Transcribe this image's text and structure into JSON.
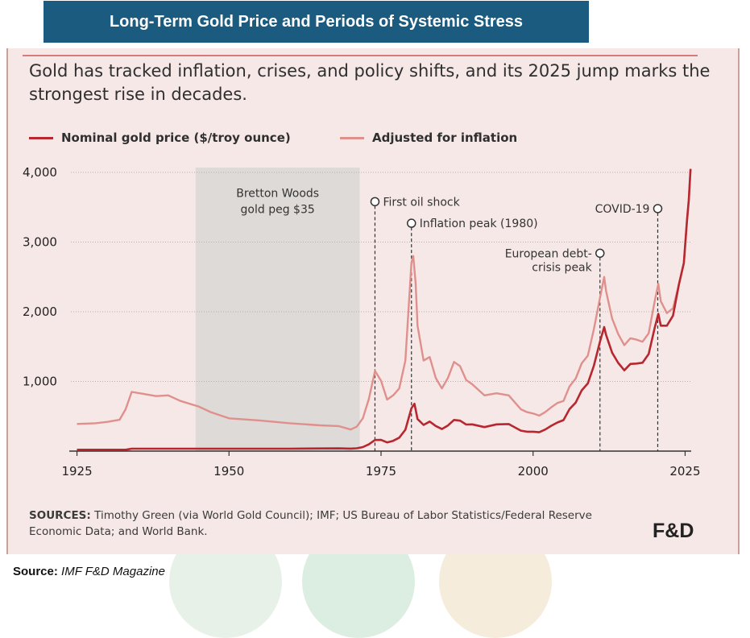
{
  "banner_title": "Long-Term Gold Price and Periods of Systemic Stress",
  "subtitle": "Gold has tracked inflation, crises, and policy shifts, and its 2025 jump marks the strongest rise in decades.",
  "sources": {
    "label": "SOURCES:",
    "text": "Timothy Green (via World Gold Council); IMF; US Bureau of Labor Statistics/Federal Reserve Economic Data; and World Bank."
  },
  "logo": "F&D",
  "footer": {
    "label": "Source:",
    "value": "IMF F&D Magazine"
  },
  "colors": {
    "nominal": "#b8272f",
    "inflation_adjusted": "#e0908c",
    "banner": "#1b5b80",
    "shade": "#dedad8"
  },
  "chart_data": {
    "type": "line",
    "title": "",
    "xlabel": "",
    "ylabel": "",
    "xlim": [
      1924,
      2026
    ],
    "ylim": [
      0,
      4000
    ],
    "x_ticks": [
      "1925",
      "1950",
      "1975",
      "2000",
      "2025"
    ],
    "y_ticks": [
      "1,000",
      "2,000",
      "3,000",
      "4,000"
    ],
    "grid": "horizontal",
    "legend": "top-left",
    "series": [
      {
        "name": "Nominal gold price ($/troy ounce)",
        "color": "#b8272f",
        "points": [
          [
            1925,
            20
          ],
          [
            1933,
            20
          ],
          [
            1934,
            35
          ],
          [
            1945,
            35
          ],
          [
            1960,
            35
          ],
          [
            1968,
            39
          ],
          [
            1970,
            36
          ],
          [
            1971,
            41
          ],
          [
            1972,
            58
          ],
          [
            1973,
            97
          ],
          [
            1974,
            159
          ],
          [
            1975,
            161
          ],
          [
            1976,
            125
          ],
          [
            1977,
            148
          ],
          [
            1978,
            193
          ],
          [
            1979,
            306
          ],
          [
            1980,
            615
          ],
          [
            1980.5,
            680
          ],
          [
            1981,
            460
          ],
          [
            1982,
            376
          ],
          [
            1983,
            424
          ],
          [
            1984,
            361
          ],
          [
            1985,
            317
          ],
          [
            1986,
            368
          ],
          [
            1987,
            447
          ],
          [
            1988,
            437
          ],
          [
            1989,
            381
          ],
          [
            1990,
            384
          ],
          [
            1992,
            344
          ],
          [
            1994,
            384
          ],
          [
            1996,
            388
          ],
          [
            1998,
            294
          ],
          [
            1999,
            279
          ],
          [
            2000,
            279
          ],
          [
            2001,
            271
          ],
          [
            2002,
            310
          ],
          [
            2003,
            364
          ],
          [
            2004,
            410
          ],
          [
            2005,
            445
          ],
          [
            2006,
            604
          ],
          [
            2007,
            696
          ],
          [
            2008,
            872
          ],
          [
            2009,
            972
          ],
          [
            2010,
            1225
          ],
          [
            2011,
            1572
          ],
          [
            2011.7,
            1780
          ],
          [
            2012,
            1669
          ],
          [
            2013,
            1411
          ],
          [
            2014,
            1266
          ],
          [
            2015,
            1160
          ],
          [
            2016,
            1251
          ],
          [
            2017,
            1257
          ],
          [
            2018,
            1268
          ],
          [
            2019,
            1393
          ],
          [
            2020,
            1770
          ],
          [
            2020.6,
            1970
          ],
          [
            2021,
            1800
          ],
          [
            2022,
            1800
          ],
          [
            2023,
            1943
          ],
          [
            2024,
            2400
          ],
          [
            2024.8,
            2700
          ],
          [
            2025.3,
            3300
          ],
          [
            2025.6,
            3600
          ],
          [
            2025.9,
            4050
          ]
        ]
      },
      {
        "name": "Adjusted for inflation",
        "color": "#e0908c",
        "points": [
          [
            1925,
            390
          ],
          [
            1928,
            400
          ],
          [
            1930,
            420
          ],
          [
            1932,
            450
          ],
          [
            1933,
            600
          ],
          [
            1934,
            850
          ],
          [
            1936,
            820
          ],
          [
            1938,
            790
          ],
          [
            1940,
            800
          ],
          [
            1942,
            720
          ],
          [
            1945,
            640
          ],
          [
            1947,
            560
          ],
          [
            1950,
            470
          ],
          [
            1955,
            440
          ],
          [
            1960,
            400
          ],
          [
            1965,
            370
          ],
          [
            1968,
            360
          ],
          [
            1970,
            310
          ],
          [
            1971,
            350
          ],
          [
            1972,
            470
          ],
          [
            1973,
            750
          ],
          [
            1974,
            1150
          ],
          [
            1975,
            1010
          ],
          [
            1976,
            740
          ],
          [
            1977,
            800
          ],
          [
            1978,
            900
          ],
          [
            1979,
            1300
          ],
          [
            1980,
            2700
          ],
          [
            1980.3,
            2800
          ],
          [
            1980.7,
            2400
          ],
          [
            1981,
            1800
          ],
          [
            1982,
            1300
          ],
          [
            1983,
            1350
          ],
          [
            1984,
            1050
          ],
          [
            1985,
            900
          ],
          [
            1986,
            1050
          ],
          [
            1987,
            1280
          ],
          [
            1988,
            1220
          ],
          [
            1989,
            1020
          ],
          [
            1990,
            960
          ],
          [
            1992,
            800
          ],
          [
            1994,
            830
          ],
          [
            1996,
            800
          ],
          [
            1998,
            600
          ],
          [
            1999,
            560
          ],
          [
            2000,
            540
          ],
          [
            2001,
            510
          ],
          [
            2002,
            560
          ],
          [
            2003,
            630
          ],
          [
            2004,
            690
          ],
          [
            2005,
            720
          ],
          [
            2006,
            930
          ],
          [
            2007,
            1040
          ],
          [
            2008,
            1260
          ],
          [
            2009,
            1370
          ],
          [
            2010,
            1750
          ],
          [
            2011,
            2200
          ],
          [
            2011.7,
            2500
          ],
          [
            2012,
            2300
          ],
          [
            2013,
            1900
          ],
          [
            2014,
            1680
          ],
          [
            2015,
            1520
          ],
          [
            2016,
            1620
          ],
          [
            2017,
            1600
          ],
          [
            2018,
            1570
          ],
          [
            2019,
            1690
          ],
          [
            2020,
            2150
          ],
          [
            2020.6,
            2400
          ],
          [
            2021,
            2150
          ],
          [
            2022,
            1980
          ],
          [
            2023,
            2050
          ],
          [
            2024,
            2400
          ],
          [
            2024.8,
            2700
          ],
          [
            2025.3,
            3300
          ],
          [
            2025.6,
            3600
          ],
          [
            2025.9,
            4050
          ]
        ]
      }
    ],
    "shaded_regions": [
      {
        "from": 1944.5,
        "to": 1971.5,
        "label_lines": [
          "Bretton Woods",
          "gold peg $35"
        ]
      }
    ],
    "annotations": [
      {
        "x": 1974,
        "marker_value": 3580,
        "label": "First oil shock",
        "label_side": "right"
      },
      {
        "x": 1980,
        "marker_value": 3270,
        "label": "Inflation peak (1980)",
        "label_side": "right"
      },
      {
        "x": 2011,
        "marker_value": 2840,
        "label_lines": [
          "European debt-",
          "crisis peak"
        ],
        "label_side": "left"
      },
      {
        "x": 2020.5,
        "marker_value": 3480,
        "label": "COVID-19",
        "label_side": "left"
      }
    ]
  }
}
